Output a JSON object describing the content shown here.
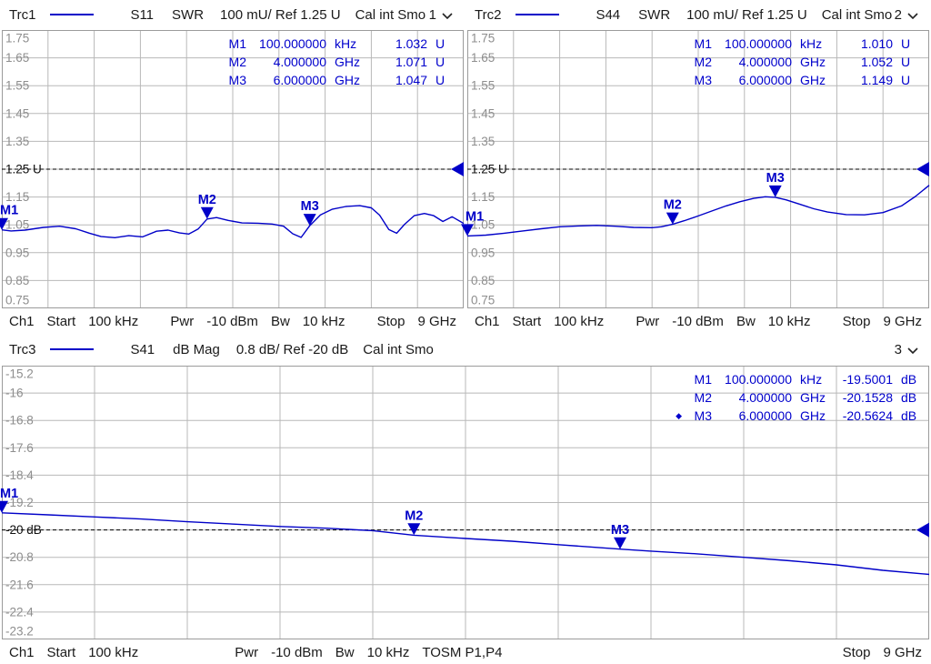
{
  "colors": {
    "trace": "#0000C8",
    "marker_text": "#0000CC",
    "grid": "#b8b8b8",
    "grid_border": "#9b9b9b",
    "tick_text": "#8e8e8e",
    "ref_text": "#111111",
    "header_text": "#1a1a1a"
  },
  "windows": [
    {
      "header": {
        "trace": "Trc1",
        "param": "S11",
        "format": "SWR",
        "scale": "100 mU/ Ref 1.25 U",
        "cal": "Cal int Smo",
        "num": "1"
      },
      "readout": [
        {
          "active": false,
          "name": "M1",
          "freq": "100.000000",
          "funit": "kHz",
          "val": "1.032",
          "vunit": "U"
        },
        {
          "active": false,
          "name": "M2",
          "freq": "4.000000",
          "funit": "GHz",
          "val": "1.071",
          "vunit": "U"
        },
        {
          "active": false,
          "name": "M3",
          "freq": "6.000000",
          "funit": "GHz",
          "val": "1.047",
          "vunit": "U"
        }
      ],
      "footer": {
        "ch": "Ch1",
        "start_label": "Start",
        "start_value": "100 kHz",
        "pwr_label": "Pwr",
        "pwr_value": "-10 dBm",
        "bw_label": "Bw",
        "bw_value": "10 kHz",
        "stop_label": "Stop",
        "stop_value": "9 GHz"
      }
    },
    {
      "header": {
        "trace": "Trc2",
        "param": "S44",
        "format": "SWR",
        "scale": "100 mU/ Ref 1.25 U",
        "cal": "Cal int Smo",
        "num": "2"
      },
      "readout": [
        {
          "active": false,
          "name": "M1",
          "freq": "100.000000",
          "funit": "kHz",
          "val": "1.010",
          "vunit": "U"
        },
        {
          "active": false,
          "name": "M2",
          "freq": "4.000000",
          "funit": "GHz",
          "val": "1.052",
          "vunit": "U"
        },
        {
          "active": false,
          "name": "M3",
          "freq": "6.000000",
          "funit": "GHz",
          "val": "1.149",
          "vunit": "U"
        }
      ],
      "footer": {
        "ch": "Ch1",
        "start_label": "Start",
        "start_value": "100 kHz",
        "pwr_label": "Pwr",
        "pwr_value": "-10 dBm",
        "bw_label": "Bw",
        "bw_value": "10 kHz",
        "stop_label": "Stop",
        "stop_value": "9 GHz"
      }
    },
    {
      "header": {
        "trace": "Trc3",
        "param": "S41",
        "format": "dB Mag",
        "scale": "0.8 dB/ Ref -20 dB",
        "cal": "Cal int Smo",
        "num": "3"
      },
      "readout": [
        {
          "active": false,
          "name": "M1",
          "freq": "100.000000",
          "funit": "kHz",
          "val": "-19.5001",
          "vunit": "dB"
        },
        {
          "active": false,
          "name": "M2",
          "freq": "4.000000",
          "funit": "GHz",
          "val": "-20.1528",
          "vunit": "dB"
        },
        {
          "active": true,
          "name": "M3",
          "freq": "6.000000",
          "funit": "GHz",
          "val": "-20.5624",
          "vunit": "dB"
        }
      ],
      "footer": {
        "ch": "Ch1",
        "start_label": "Start",
        "start_value": "100 kHz",
        "pwr_label": "Pwr",
        "pwr_value": "-10 dBm",
        "bw_label": "Bw",
        "bw_value": "10 kHz",
        "cal_status": "TOSM P1,P4",
        "stop_label": "Stop",
        "stop_value": "9 GHz"
      }
    }
  ],
  "chart_data": [
    {
      "type": "line",
      "title": "Trc1 S11 SWR 100 mU/ Ref 1.25 U",
      "trace_name": "Trc1",
      "parameter": "S11",
      "format": "SWR",
      "x_axis": "frequency, linear sweep",
      "x_start": "100 kHz",
      "x_stop": "9 GHz",
      "ymin": 0.75,
      "ymax": 1.75,
      "per_div": 0.1,
      "ref_value": 1.25,
      "ref_label_index": 5,
      "ytick_labels": [
        "1.75",
        "1.65",
        "1.55",
        "1.45",
        "1.35",
        "1.25 U",
        "1.15",
        "1.05",
        "0.95",
        "0.85",
        "0.75"
      ],
      "x": [
        0,
        0.02,
        0.05,
        0.09,
        0.125,
        0.16,
        0.19,
        0.215,
        0.245,
        0.275,
        0.305,
        0.335,
        0.36,
        0.385,
        0.405,
        0.425,
        0.4444,
        0.465,
        0.49,
        0.52,
        0.555,
        0.585,
        0.61,
        0.63,
        0.648,
        0.6667,
        0.69,
        0.715,
        0.745,
        0.775,
        0.8,
        0.818,
        0.838,
        0.855,
        0.872,
        0.893,
        0.915,
        0.935,
        0.955,
        0.975,
        1.0
      ],
      "y": [
        1.032,
        1.028,
        1.031,
        1.041,
        1.045,
        1.036,
        1.02,
        1.008,
        1.004,
        1.011,
        1.007,
        1.027,
        1.031,
        1.021,
        1.017,
        1.035,
        1.071,
        1.076,
        1.066,
        1.057,
        1.056,
        1.053,
        1.045,
        1.018,
        1.005,
        1.047,
        1.086,
        1.106,
        1.116,
        1.119,
        1.111,
        1.085,
        1.033,
        1.02,
        1.052,
        1.083,
        1.091,
        1.083,
        1.062,
        1.079,
        1.055
      ],
      "markers": [
        {
          "label": "M1",
          "x": 1.11e-05,
          "y": 1.032
        },
        {
          "label": "M2",
          "x": 0.4444,
          "y": 1.071
        },
        {
          "label": "M3",
          "x": 0.6667,
          "y": 1.047
        }
      ]
    },
    {
      "type": "line",
      "title": "Trc2 S44 SWR 100 mU/ Ref 1.25 U",
      "trace_name": "Trc2",
      "parameter": "S44",
      "format": "SWR",
      "x_axis": "frequency, linear sweep",
      "x_start": "100 kHz",
      "x_stop": "9 GHz",
      "ymin": 0.75,
      "ymax": 1.75,
      "per_div": 0.1,
      "ref_value": 1.25,
      "ref_label_index": 5,
      "ytick_labels": [
        "1.75",
        "1.65",
        "1.55",
        "1.45",
        "1.35",
        "1.25 U",
        "1.15",
        "1.05",
        "0.95",
        "0.85",
        "0.75"
      ],
      "x": [
        0,
        0.04,
        0.08,
        0.12,
        0.16,
        0.2,
        0.24,
        0.28,
        0.32,
        0.36,
        0.4,
        0.42,
        0.4444,
        0.47,
        0.5,
        0.53,
        0.56,
        0.59,
        0.62,
        0.645,
        0.6667,
        0.69,
        0.72,
        0.75,
        0.78,
        0.82,
        0.86,
        0.9,
        0.94,
        0.97,
        1.0
      ],
      "y": [
        1.01,
        1.013,
        1.02,
        1.028,
        1.036,
        1.043,
        1.046,
        1.048,
        1.045,
        1.041,
        1.04,
        1.043,
        1.052,
        1.065,
        1.082,
        1.1,
        1.118,
        1.133,
        1.145,
        1.151,
        1.149,
        1.14,
        1.124,
        1.108,
        1.096,
        1.087,
        1.086,
        1.094,
        1.118,
        1.152,
        1.192
      ],
      "markers": [
        {
          "label": "M1",
          "x": 1.11e-05,
          "y": 1.01
        },
        {
          "label": "M2",
          "x": 0.4444,
          "y": 1.052
        },
        {
          "label": "M3",
          "x": 0.6667,
          "y": 1.149
        }
      ]
    },
    {
      "type": "line",
      "title": "Trc3 S41 dB Mag 0.8 dB/ Ref -20 dB",
      "trace_name": "Trc3",
      "parameter": "S41",
      "format": "dB Mag",
      "x_axis": "frequency, linear sweep",
      "x_start": "100 kHz",
      "x_stop": "9 GHz",
      "ymin": -23.2,
      "ymax": -15.2,
      "per_div": 0.8,
      "ref_value": -20,
      "ref_label_index": 6,
      "ytick_labels": [
        "-15.2",
        "-16",
        "-16.8",
        "-17.6",
        "-18.4",
        "-19.2",
        "-20 dB",
        "-20.8",
        "-21.6",
        "-22.4",
        "-23.2"
      ],
      "x": [
        0,
        0.05,
        0.1,
        0.15,
        0.2,
        0.25,
        0.3,
        0.35,
        0.4,
        0.4444,
        0.5,
        0.55,
        0.6,
        0.6667,
        0.7,
        0.75,
        0.8,
        0.85,
        0.9,
        0.95,
        1.0
      ],
      "y": [
        -19.5,
        -19.56,
        -19.62,
        -19.68,
        -19.76,
        -19.83,
        -19.9,
        -19.95,
        -20.02,
        -20.153,
        -20.25,
        -20.33,
        -20.43,
        -20.562,
        -20.62,
        -20.7,
        -20.8,
        -20.9,
        -21.02,
        -21.18,
        -21.3
      ],
      "markers": [
        {
          "label": "M1",
          "x": 1.11e-05,
          "y": -19.5001
        },
        {
          "label": "M2",
          "x": 0.4444,
          "y": -20.1528
        },
        {
          "label": "M3",
          "x": 0.6667,
          "y": -20.5624
        }
      ]
    }
  ]
}
